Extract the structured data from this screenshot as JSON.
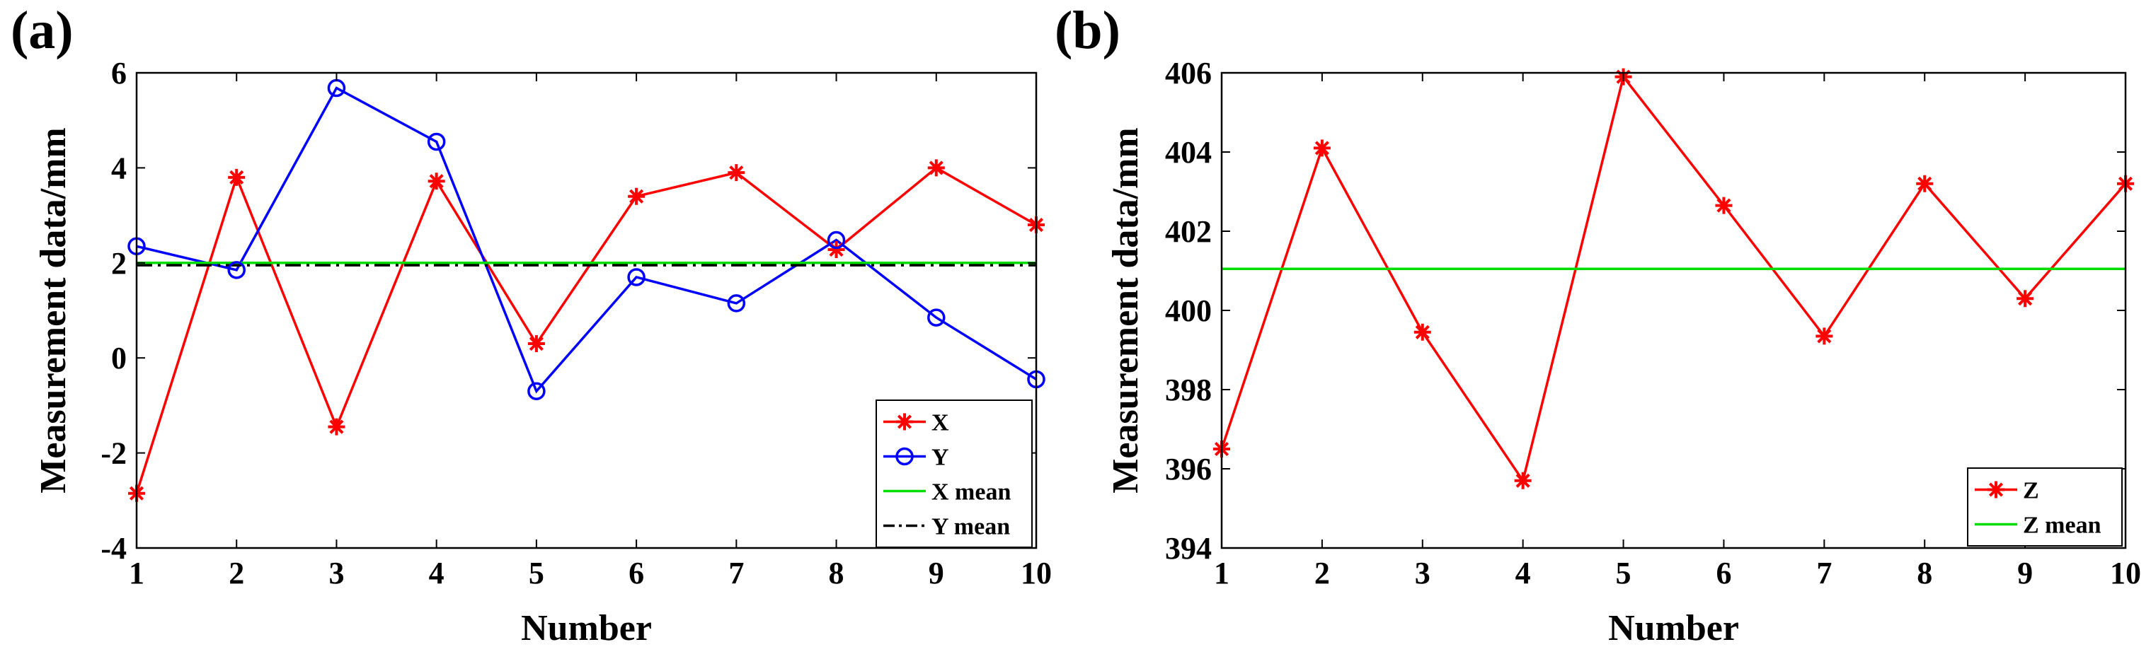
{
  "chart_data": [
    {
      "panel_label": "(a)",
      "type": "line",
      "xlabel": "Number",
      "ylabel": "Measurement data/mm",
      "xlim": [
        1,
        10
      ],
      "ylim": [
        -4,
        6
      ],
      "xticks": [
        1,
        2,
        3,
        4,
        5,
        6,
        7,
        8,
        9,
        10
      ],
      "yticks": [
        -4,
        -2,
        0,
        2,
        4,
        6
      ],
      "grid": false,
      "legend_position": "bottom-right",
      "x": [
        1,
        2,
        3,
        4,
        5,
        6,
        7,
        8,
        9,
        10
      ],
      "series": [
        {
          "name": "X",
          "color": "#ff0000",
          "marker": "asterisk",
          "line": "solid",
          "values": [
            -2.85,
            3.8,
            -1.45,
            3.72,
            0.3,
            3.4,
            3.9,
            2.28,
            4.0,
            2.8
          ]
        },
        {
          "name": "Y",
          "color": "#0000ff",
          "marker": "circle",
          "line": "solid",
          "values": [
            2.35,
            1.85,
            5.68,
            4.55,
            -0.7,
            1.7,
            1.15,
            2.48,
            0.85,
            -0.45
          ]
        },
        {
          "name": "X mean",
          "color": "#00dd00",
          "marker": "none",
          "line": "solid",
          "values": [
            2.0,
            2.0,
            2.0,
            2.0,
            2.0,
            2.0,
            2.0,
            2.0,
            2.0,
            2.0
          ]
        },
        {
          "name": "Y mean",
          "color": "#000000",
          "marker": "none",
          "line": "dashdot",
          "values": [
            1.95,
            1.95,
            1.95,
            1.95,
            1.95,
            1.95,
            1.95,
            1.95,
            1.95,
            1.95
          ]
        }
      ]
    },
    {
      "panel_label": "(b)",
      "type": "line",
      "xlabel": "Number",
      "ylabel": "Measurement data/mm",
      "xlim": [
        1,
        10
      ],
      "ylim": [
        394,
        406
      ],
      "xticks": [
        1,
        2,
        3,
        4,
        5,
        6,
        7,
        8,
        9,
        10
      ],
      "yticks": [
        394,
        396,
        398,
        400,
        402,
        404,
        406
      ],
      "grid": false,
      "legend_position": "bottom-right",
      "x": [
        1,
        2,
        3,
        4,
        5,
        6,
        7,
        8,
        9,
        10
      ],
      "series": [
        {
          "name": "Z",
          "color": "#ff0000",
          "marker": "asterisk",
          "line": "solid",
          "values": [
            396.5,
            404.1,
            399.45,
            395.7,
            405.9,
            402.65,
            399.35,
            403.2,
            400.3,
            403.2
          ]
        },
        {
          "name": "Z mean",
          "color": "#00dd00",
          "marker": "none",
          "line": "solid",
          "values": [
            401.05,
            401.05,
            401.05,
            401.05,
            401.05,
            401.05,
            401.05,
            401.05,
            401.05,
            401.05
          ]
        }
      ]
    }
  ]
}
